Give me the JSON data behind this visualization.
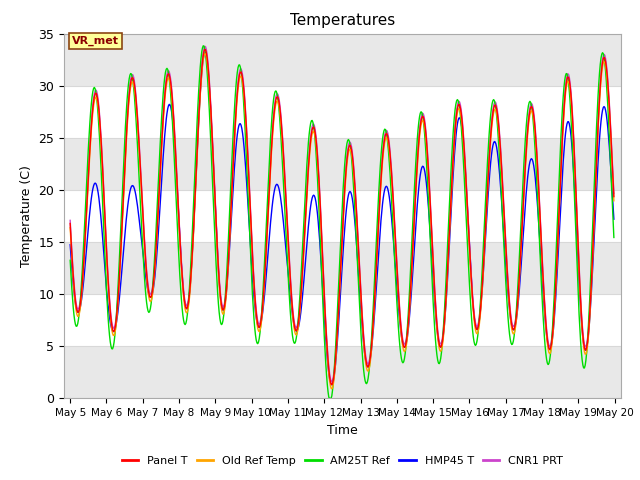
{
  "title": "Temperatures",
  "xlabel": "Time",
  "ylabel": "Temperature (C)",
  "annotation": "VR_met",
  "ylim": [
    0,
    35
  ],
  "xlim_days": [
    4.83,
    20.17
  ],
  "x_ticks": [
    5,
    6,
    7,
    8,
    9,
    10,
    11,
    12,
    13,
    14,
    15,
    16,
    17,
    18,
    19,
    20
  ],
  "x_tick_labels": [
    "May 5",
    "May 6",
    "May 7",
    "May 8",
    "May 9",
    "May 10",
    "May 11",
    "May 12",
    "May 13",
    "May 14",
    "May 15",
    "May 16",
    "May 17",
    "May 18",
    "May 19",
    "May 20"
  ],
  "colors": {
    "Panel T": "#ff0000",
    "Old Ref Temp": "#ffa500",
    "AM25T Ref": "#00dd00",
    "HMP45 T": "#0000ff",
    "CNR1 PRT": "#cc44cc"
  },
  "legend_labels": [
    "Panel T",
    "Old Ref Temp",
    "AM25T Ref",
    "HMP45 T",
    "CNR1 PRT"
  ],
  "plot_bg": "#ffffff",
  "fig_bg": "#ffffff",
  "grid_color": "#d8d8d8",
  "alt_band_color": "#e8e8e8",
  "annotation_bg": "#ffff99",
  "annotation_border": "#8b4513",
  "day_peaks": [
    30,
    29,
    31.5,
    31,
    34.5,
    30,
    28.5,
    25,
    24,
    26,
    27.5,
    28.5,
    28,
    28,
    32,
    33
  ],
  "day_mins": [
    9,
    5.5,
    10,
    8.5,
    9,
    6.5,
    8,
    1,
    2.5,
    5,
    4.5,
    6.5,
    7,
    5,
    3.5,
    9
  ],
  "hmp45_peaks": [
    24.5,
    19,
    21,
    31,
    34,
    23,
    19.5,
    19.5,
    20,
    20.5,
    23,
    28.5,
    23,
    23,
    28,
    28
  ],
  "hmp45_mins": [
    9,
    5.5,
    10,
    8.5,
    9,
    6.5,
    8,
    1,
    2.5,
    5,
    4.5,
    6.5,
    7,
    5,
    3.5,
    9
  ],
  "am25t_extra_peak": 2.0,
  "am25t_extra_min": -1.5
}
